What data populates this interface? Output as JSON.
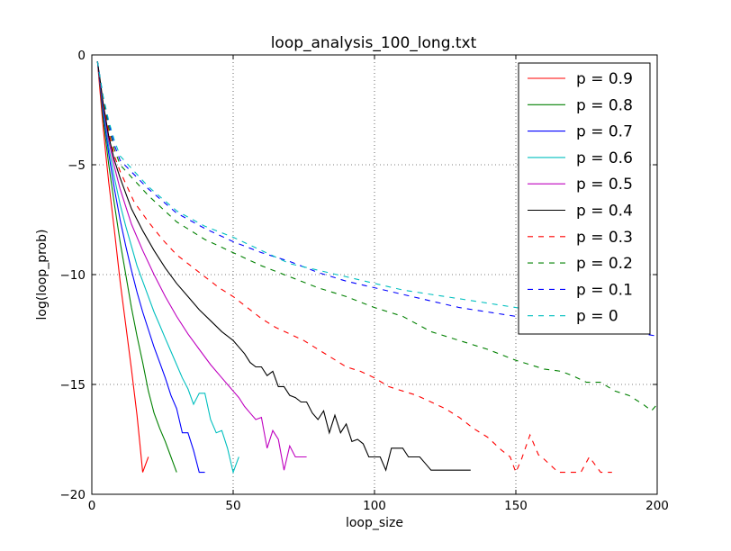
{
  "chart_data": {
    "type": "line",
    "title": "loop_analysis_100_long.txt",
    "xlabel": "loop_size",
    "ylabel": "log(loop_prob)",
    "xlim": [
      0,
      200
    ],
    "ylim": [
      -20,
      0
    ],
    "xticks": [
      0,
      50,
      100,
      150,
      200
    ],
    "yticks": [
      0,
      -5,
      -10,
      -15,
      -20
    ],
    "xtick_labels": [
      "0",
      "50",
      "100",
      "150",
      "200"
    ],
    "ytick_labels": [
      "0",
      "−5",
      "−10",
      "−15",
      "−20"
    ],
    "grid": true,
    "legend_position": "top-right",
    "series": [
      {
        "name": "p = 0.9",
        "color": "#ff0000",
        "style": "solid",
        "x": [
          2,
          3,
          4,
          5,
          6,
          8,
          10,
          12,
          14,
          16,
          17,
          18,
          20
        ],
        "y": [
          -0.3,
          -1.8,
          -3.3,
          -4.6,
          -5.8,
          -8.0,
          -10.3,
          -12.3,
          -14.3,
          -16.4,
          -17.7,
          -19.0,
          -18.3
        ]
      },
      {
        "name": "p = 0.8",
        "color": "#008000",
        "style": "solid",
        "x": [
          2,
          3,
          4,
          6,
          8,
          10,
          12,
          14,
          16,
          18,
          20,
          22,
          24,
          26,
          28,
          30
        ],
        "y": [
          -0.3,
          -1.5,
          -2.9,
          -5.0,
          -6.8,
          -8.5,
          -10.0,
          -11.5,
          -12.8,
          -14.0,
          -15.3,
          -16.3,
          -17.0,
          -17.6,
          -18.3,
          -19.0
        ]
      },
      {
        "name": "p = 0.7",
        "color": "#0000ff",
        "style": "solid",
        "x": [
          2,
          3,
          4,
          6,
          8,
          10,
          12,
          14,
          16,
          18,
          20,
          22,
          24,
          26,
          28,
          30,
          32,
          34,
          36,
          38,
          40
        ],
        "y": [
          -0.3,
          -1.4,
          -2.6,
          -4.5,
          -6.1,
          -7.5,
          -8.7,
          -9.8,
          -10.8,
          -11.7,
          -12.5,
          -13.3,
          -14.0,
          -14.7,
          -15.5,
          -16.1,
          -17.2,
          -17.2,
          -18.0,
          -19.0,
          -19.0
        ]
      },
      {
        "name": "p = 0.6",
        "color": "#00bfbf",
        "style": "solid",
        "x": [
          2,
          3,
          4,
          6,
          8,
          10,
          12,
          14,
          16,
          18,
          20,
          22,
          24,
          26,
          28,
          30,
          32,
          34,
          36,
          38,
          40,
          42,
          44,
          46,
          48,
          50,
          52
        ],
        "y": [
          -0.3,
          -1.3,
          -2.4,
          -4.2,
          -5.6,
          -6.8,
          -7.8,
          -8.7,
          -9.6,
          -10.3,
          -11.0,
          -11.7,
          -12.3,
          -12.9,
          -13.5,
          -14.1,
          -14.7,
          -15.2,
          -15.9,
          -15.4,
          -15.4,
          -16.6,
          -17.2,
          -17.1,
          -17.9,
          -19.0,
          -18.3
        ]
      },
      {
        "name": "p = 0.5",
        "color": "#bf00bf",
        "style": "solid",
        "x": [
          2,
          3,
          4,
          6,
          8,
          10,
          14,
          18,
          22,
          26,
          30,
          34,
          38,
          42,
          46,
          48,
          50,
          52,
          54,
          56,
          58,
          60,
          62,
          64,
          66,
          68,
          70,
          72,
          74,
          76
        ],
        "y": [
          -0.3,
          -1.3,
          -2.3,
          -3.9,
          -5.1,
          -6.1,
          -7.7,
          -8.9,
          -10.0,
          -11.0,
          -11.9,
          -12.7,
          -13.4,
          -14.1,
          -14.7,
          -15.0,
          -15.3,
          -15.6,
          -16.0,
          -16.3,
          -16.6,
          -16.5,
          -17.9,
          -17.1,
          -17.5,
          -18.9,
          -17.8,
          -18.3,
          -18.3,
          -18.3
        ]
      },
      {
        "name": "p = 0.4",
        "color": "#000000",
        "style": "solid",
        "x": [
          2,
          3,
          4,
          6,
          8,
          10,
          14,
          18,
          22,
          26,
          30,
          34,
          38,
          42,
          46,
          50,
          54,
          56,
          58,
          60,
          62,
          64,
          66,
          68,
          70,
          72,
          74,
          76,
          78,
          80,
          82,
          84,
          86,
          88,
          90,
          92,
          94,
          96,
          98,
          100,
          102,
          104,
          106,
          108,
          110,
          112,
          114,
          116,
          118,
          120,
          122,
          126,
          130,
          134
        ],
        "y": [
          -0.3,
          -1.2,
          -2.2,
          -3.7,
          -4.8,
          -5.6,
          -7.0,
          -8.0,
          -8.9,
          -9.7,
          -10.4,
          -11.0,
          -11.6,
          -12.1,
          -12.6,
          -13.0,
          -13.6,
          -14.0,
          -14.2,
          -14.2,
          -14.6,
          -14.4,
          -15.1,
          -15.1,
          -15.5,
          -15.6,
          -15.8,
          -15.8,
          -16.3,
          -16.6,
          -16.2,
          -17.2,
          -16.4,
          -17.2,
          -16.8,
          -17.6,
          -17.5,
          -17.7,
          -18.3,
          -18.3,
          -18.3,
          -18.9,
          -17.9,
          -17.9,
          -17.9,
          -18.3,
          -18.3,
          -18.3,
          -18.6,
          -18.9,
          -18.9,
          -18.9,
          -18.9,
          -18.9
        ]
      },
      {
        "name": "p = 0.3",
        "color": "#ff0000",
        "style": "dashed",
        "x": [
          2,
          3,
          4,
          6,
          8,
          10,
          15,
          20,
          25,
          30,
          35,
          40,
          45,
          50,
          55,
          60,
          65,
          70,
          75,
          80,
          85,
          90,
          95,
          100,
          105,
          110,
          115,
          120,
          125,
          130,
          135,
          140,
          145,
          148,
          150,
          152,
          155,
          158,
          160,
          165,
          170,
          173,
          176,
          180,
          184
        ],
        "y": [
          -0.3,
          -1.2,
          -2.1,
          -3.5,
          -4.6,
          -5.3,
          -6.7,
          -7.6,
          -8.4,
          -9.1,
          -9.6,
          -10.1,
          -10.6,
          -11.0,
          -11.5,
          -12.0,
          -12.4,
          -12.7,
          -13.0,
          -13.4,
          -13.8,
          -14.2,
          -14.4,
          -14.7,
          -15.1,
          -15.3,
          -15.5,
          -15.8,
          -16.1,
          -16.5,
          -17.0,
          -17.4,
          -18.0,
          -18.3,
          -19.0,
          -18.4,
          -17.3,
          -18.2,
          -18.4,
          -19.0,
          -19.0,
          -19.0,
          -18.3,
          -19.0,
          -19.0
        ]
      },
      {
        "name": "p = 0.2",
        "color": "#008000",
        "style": "dashed",
        "x": [
          2,
          3,
          4,
          6,
          8,
          10,
          20,
          30,
          40,
          50,
          60,
          70,
          80,
          90,
          100,
          110,
          120,
          130,
          140,
          150,
          160,
          166,
          170,
          175,
          180,
          185,
          190,
          195,
          198,
          200
        ],
        "y": [
          -0.3,
          -1.1,
          -2.0,
          -3.3,
          -4.3,
          -5.0,
          -6.4,
          -7.6,
          -8.4,
          -9.0,
          -9.6,
          -10.1,
          -10.6,
          -11.0,
          -11.5,
          -11.9,
          -12.6,
          -13.0,
          -13.4,
          -13.9,
          -14.3,
          -14.4,
          -14.6,
          -14.9,
          -14.9,
          -15.3,
          -15.5,
          -15.9,
          -16.2,
          -15.9
        ]
      },
      {
        "name": "p = 0.1",
        "color": "#0000ff",
        "style": "dashed",
        "x": [
          2,
          3,
          4,
          6,
          8,
          10,
          20,
          30,
          40,
          50,
          60,
          70,
          80,
          90,
          100,
          110,
          120,
          130,
          140,
          150,
          160,
          170,
          180,
          190,
          200
        ],
        "y": [
          -0.3,
          -1.1,
          -1.9,
          -3.1,
          -4.1,
          -4.8,
          -6.1,
          -7.2,
          -7.9,
          -8.5,
          -9.0,
          -9.4,
          -9.9,
          -10.3,
          -10.6,
          -10.9,
          -11.2,
          -11.5,
          -11.7,
          -11.9,
          -12.1,
          -12.3,
          -12.4,
          -12.6,
          -12.8
        ]
      },
      {
        "name": "p = 0",
        "color": "#00bfbf",
        "style": "dashed",
        "x": [
          2,
          3,
          4,
          6,
          8,
          10,
          20,
          30,
          40,
          50,
          60,
          70,
          80,
          90,
          100,
          110,
          120,
          130,
          140,
          150,
          160
        ],
        "y": [
          -0.3,
          -1.1,
          -1.9,
          -3.0,
          -3.9,
          -4.6,
          -6.0,
          -7.1,
          -7.8,
          -8.3,
          -8.9,
          -9.5,
          -9.8,
          -10.1,
          -10.4,
          -10.7,
          -10.9,
          -11.1,
          -11.3,
          -11.5,
          -11.7
        ]
      }
    ]
  }
}
